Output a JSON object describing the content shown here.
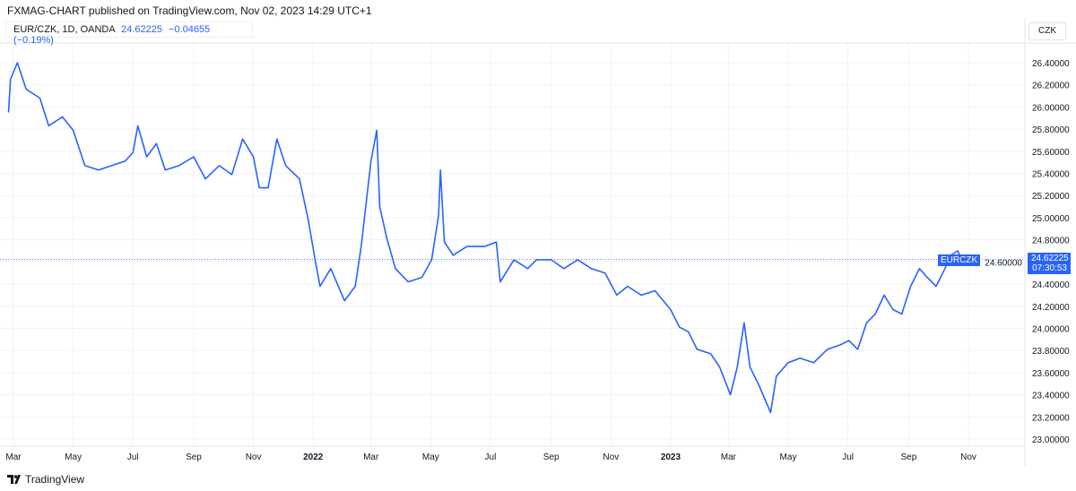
{
  "header": {
    "published": "FXMAG-CHART published on TradingView.com, Nov 02, 2023 14:29 UTC+1"
  },
  "legend": {
    "symbol": "EUR/CZK, 1D, OANDA",
    "price": "24.62225",
    "change": "−0.04655 (−0.19%)"
  },
  "currency": "CZK",
  "price_label": {
    "symbol": "EURCZK",
    "price": "24.62225",
    "countdown": "07:30:53"
  },
  "footer": {
    "logo": "TradingView"
  },
  "colors": {
    "line": "#2962ff",
    "grid": "#f0f3fa"
  },
  "chart_data": {
    "type": "line",
    "yticks": [
      26.4,
      26.2,
      26.0,
      25.8,
      25.6,
      25.4,
      25.2,
      25.0,
      24.8,
      24.6,
      24.4,
      24.2,
      24.0,
      23.8,
      23.6,
      23.4,
      23.2,
      23.0
    ],
    "ylim": [
      23.0,
      26.4
    ],
    "xticks": [
      {
        "label": "Mar",
        "date": "2021-03-01"
      },
      {
        "label": "May",
        "date": "2021-05-01"
      },
      {
        "label": "Jul",
        "date": "2021-07-01"
      },
      {
        "label": "Sep",
        "date": "2021-09-01"
      },
      {
        "label": "Nov",
        "date": "2021-11-01"
      },
      {
        "label": "2022",
        "date": "2022-01-01"
      },
      {
        "label": "Mar",
        "date": "2022-03-01"
      },
      {
        "label": "May",
        "date": "2022-05-01"
      },
      {
        "label": "Jul",
        "date": "2022-07-01"
      },
      {
        "label": "Sep",
        "date": "2022-09-01"
      },
      {
        "label": "Nov",
        "date": "2022-11-01"
      },
      {
        "label": "2023",
        "date": "2023-01-01"
      },
      {
        "label": "Mar",
        "date": "2023-03-01"
      },
      {
        "label": "May",
        "date": "2023-05-01"
      },
      {
        "label": "Jul",
        "date": "2023-07-01"
      },
      {
        "label": "Sep",
        "date": "2023-09-01"
      },
      {
        "label": "Nov",
        "date": "2023-11-01"
      }
    ],
    "grid": true,
    "last_value": 24.62225,
    "series": [
      {
        "points": [
          [
            "2021-02-24",
            25.95
          ],
          [
            "2021-02-26",
            26.25
          ],
          [
            "2021-03-05",
            26.4
          ],
          [
            "2021-03-14",
            26.16
          ],
          [
            "2021-03-28",
            26.08
          ],
          [
            "2021-04-06",
            25.83
          ],
          [
            "2021-04-20",
            25.91
          ],
          [
            "2021-05-01",
            25.79
          ],
          [
            "2021-05-13",
            25.47
          ],
          [
            "2021-05-27",
            25.43
          ],
          [
            "2021-06-09",
            25.47
          ],
          [
            "2021-06-23",
            25.51
          ],
          [
            "2021-07-01",
            25.59
          ],
          [
            "2021-07-06",
            25.83
          ],
          [
            "2021-07-15",
            25.55
          ],
          [
            "2021-07-25",
            25.67
          ],
          [
            "2021-08-03",
            25.43
          ],
          [
            "2021-08-17",
            25.47
          ],
          [
            "2021-09-01",
            25.55
          ],
          [
            "2021-09-13",
            25.35
          ],
          [
            "2021-09-27",
            25.47
          ],
          [
            "2021-10-10",
            25.39
          ],
          [
            "2021-10-21",
            25.71
          ],
          [
            "2021-11-01",
            25.55
          ],
          [
            "2021-11-07",
            25.27
          ],
          [
            "2021-11-16",
            25.27
          ],
          [
            "2021-11-25",
            25.71
          ],
          [
            "2021-12-04",
            25.47
          ],
          [
            "2021-12-18",
            25.35
          ],
          [
            "2021-12-27",
            24.98
          ],
          [
            "2022-01-03",
            24.62
          ],
          [
            "2022-01-08",
            24.38
          ],
          [
            "2022-01-19",
            24.54
          ],
          [
            "2022-02-02",
            24.25
          ],
          [
            "2022-02-13",
            24.38
          ],
          [
            "2022-02-19",
            24.74
          ],
          [
            "2022-03-01",
            25.51
          ],
          [
            "2022-03-07",
            25.79
          ],
          [
            "2022-03-10",
            25.1
          ],
          [
            "2022-03-17",
            24.82
          ],
          [
            "2022-03-26",
            24.54
          ],
          [
            "2022-04-08",
            24.42
          ],
          [
            "2022-04-22",
            24.46
          ],
          [
            "2022-05-02",
            24.62
          ],
          [
            "2022-05-09",
            25.02
          ],
          [
            "2022-05-11",
            25.43
          ],
          [
            "2022-05-15",
            24.78
          ],
          [
            "2022-05-24",
            24.66
          ],
          [
            "2022-06-07",
            24.74
          ],
          [
            "2022-06-25",
            24.74
          ],
          [
            "2022-07-07",
            24.78
          ],
          [
            "2022-07-11",
            24.42
          ],
          [
            "2022-07-25",
            24.62
          ],
          [
            "2022-08-08",
            24.54
          ],
          [
            "2022-08-17",
            24.62
          ],
          [
            "2022-09-01",
            24.62
          ],
          [
            "2022-09-14",
            24.54
          ],
          [
            "2022-09-28",
            24.62
          ],
          [
            "2022-10-12",
            24.54
          ],
          [
            "2022-10-26",
            24.5
          ],
          [
            "2022-11-07",
            24.3
          ],
          [
            "2022-11-18",
            24.38
          ],
          [
            "2022-12-02",
            24.3
          ],
          [
            "2022-12-16",
            24.34
          ],
          [
            "2023-01-01",
            24.17
          ],
          [
            "2023-01-10",
            24.01
          ],
          [
            "2023-01-19",
            23.97
          ],
          [
            "2023-01-28",
            23.81
          ],
          [
            "2023-02-11",
            23.77
          ],
          [
            "2023-02-20",
            23.65
          ],
          [
            "2023-03-03",
            23.4
          ],
          [
            "2023-03-10",
            23.65
          ],
          [
            "2023-03-17",
            24.05
          ],
          [
            "2023-03-23",
            23.65
          ],
          [
            "2023-04-01",
            23.49
          ],
          [
            "2023-04-13",
            23.24
          ],
          [
            "2023-04-19",
            23.57
          ],
          [
            "2023-05-01",
            23.69
          ],
          [
            "2023-05-13",
            23.73
          ],
          [
            "2023-05-27",
            23.69
          ],
          [
            "2023-06-10",
            23.81
          ],
          [
            "2023-06-23",
            23.85
          ],
          [
            "2023-07-02",
            23.89
          ],
          [
            "2023-07-11",
            23.81
          ],
          [
            "2023-07-20",
            24.05
          ],
          [
            "2023-07-29",
            24.13
          ],
          [
            "2023-08-07",
            24.3
          ],
          [
            "2023-08-16",
            24.17
          ],
          [
            "2023-08-25",
            24.13
          ],
          [
            "2023-09-03",
            24.38
          ],
          [
            "2023-09-12",
            24.54
          ],
          [
            "2023-09-20",
            24.46
          ],
          [
            "2023-09-29",
            24.38
          ],
          [
            "2023-10-08",
            24.54
          ],
          [
            "2023-10-14",
            24.66
          ],
          [
            "2023-10-21",
            24.7
          ],
          [
            "2023-10-28",
            24.58
          ],
          [
            "2023-11-02",
            24.62
          ]
        ]
      }
    ]
  }
}
